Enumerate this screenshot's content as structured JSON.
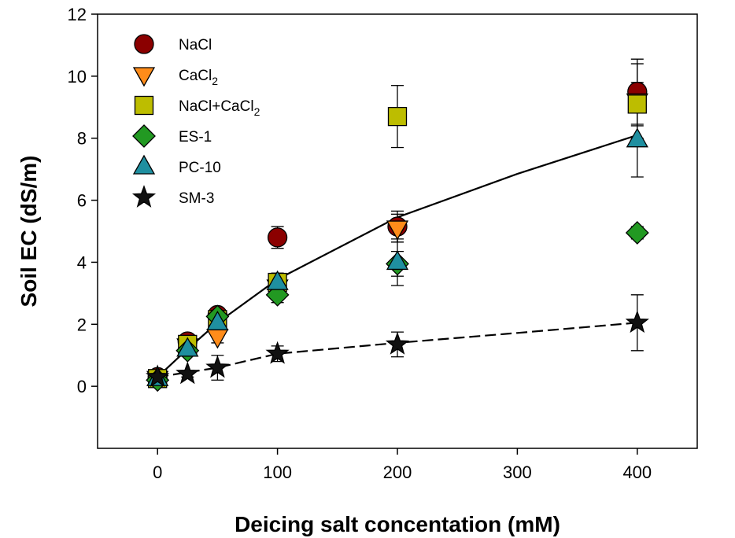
{
  "chart_data": {
    "type": "scatter",
    "xlabel": "Deicing salt concentation (mM)",
    "ylabel": "Soil EC (dS/m)",
    "xlim": [
      -50,
      450
    ],
    "ylim": [
      -2,
      12
    ],
    "x_ticks": [
      0,
      100,
      200,
      300,
      400
    ],
    "y_ticks": [
      0,
      2,
      4,
      6,
      8,
      10,
      12
    ],
    "x_scale": "linear",
    "grid": false,
    "legend_position": "top-left",
    "series": [
      {
        "name": "NaCl",
        "name_sub": "",
        "name_suffix": "",
        "marker": "circle",
        "color": "#8B0000",
        "x": [
          0,
          25,
          50,
          100,
          200,
          400
        ],
        "y": [
          0.3,
          1.45,
          2.3,
          4.8,
          5.15,
          9.5
        ],
        "yerr": [
          0.1,
          0.15,
          0.2,
          0.35,
          0.5,
          1.05
        ]
      },
      {
        "name": "CaCl",
        "name_sub": "2",
        "name_suffix": "",
        "marker": "triangle-down",
        "color": "#FF8C1A",
        "x": [
          0,
          25,
          50,
          100,
          200,
          400
        ],
        "y": [
          0.25,
          1.3,
          1.6,
          3.2,
          5.1,
          9.2
        ],
        "yerr": [
          0.05,
          0.15,
          0.2,
          0.3,
          0.45,
          1.2
        ]
      },
      {
        "name": "NaCl+CaCl",
        "name_sub": "2",
        "name_suffix": "",
        "marker": "square",
        "color": "#BDBD00",
        "x": [
          0,
          25,
          50,
          100,
          200,
          400
        ],
        "y": [
          0.25,
          1.35,
          2.15,
          3.35,
          8.7,
          9.1
        ],
        "yerr": [
          0.05,
          0.15,
          0.2,
          0.3,
          1.0,
          0.7
        ]
      },
      {
        "name": "ES-1",
        "name_sub": "",
        "name_suffix": "",
        "marker": "diamond",
        "color": "#229922",
        "x": [
          0,
          25,
          50,
          100,
          200,
          400
        ],
        "y": [
          0.2,
          1.15,
          2.25,
          2.95,
          3.95,
          4.95
        ],
        "yerr": [
          0.05,
          0.1,
          0.2,
          0.25,
          0.4,
          0.2
        ]
      },
      {
        "name": "PC-10",
        "name_sub": "",
        "name_suffix": "",
        "marker": "triangle-up",
        "color": "#1F8FA0",
        "x": [
          0,
          25,
          50,
          100,
          200,
          400
        ],
        "y": [
          0.25,
          1.2,
          2.05,
          3.35,
          4.0,
          7.95
        ],
        "yerr": [
          0.05,
          0.1,
          0.2,
          0.3,
          0.75,
          1.2
        ]
      },
      {
        "name": "SM-3",
        "name_sub": "",
        "name_suffix": "",
        "marker": "star",
        "color": "#111111",
        "x": [
          0,
          25,
          50,
          100,
          200,
          400
        ],
        "y": [
          0.3,
          0.4,
          0.6,
          1.05,
          1.35,
          2.05
        ],
        "yerr": [
          0.05,
          0.1,
          0.4,
          0.25,
          0.4,
          0.9
        ]
      }
    ],
    "fit_lines": [
      {
        "style": "solid",
        "x": [
          0,
          25,
          50,
          100,
          200,
          300,
          400
        ],
        "y": [
          0.3,
          1.2,
          2.05,
          3.45,
          5.45,
          6.85,
          8.1
        ]
      },
      {
        "style": "dashed",
        "x": [
          0,
          25,
          50,
          100,
          200,
          300,
          400
        ],
        "y": [
          0.3,
          0.45,
          0.6,
          1.05,
          1.4,
          1.72,
          2.05
        ]
      }
    ]
  }
}
